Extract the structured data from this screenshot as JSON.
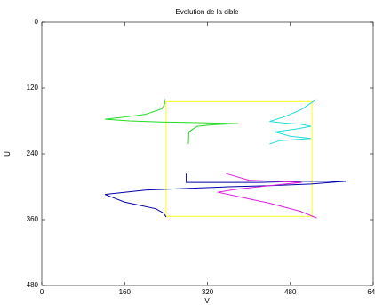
{
  "chart_data": {
    "type": "line",
    "title": "Evolution de la cible",
    "xlabel": "V",
    "ylabel": "U",
    "xlim": [
      0,
      640
    ],
    "xticks": [
      0,
      160,
      320,
      480,
      640
    ],
    "ylim": [
      0,
      480
    ],
    "yticks": [
      0,
      120,
      240,
      360,
      480
    ],
    "y_reversed": true,
    "series": [
      {
        "color": "#ffff22",
        "x": [
          240,
          522,
          522,
          240,
          240
        ],
        "y": [
          145,
          145,
          354,
          354,
          145
        ]
      },
      {
        "color": "#22dd22",
        "x": [
          238,
          238,
          232,
          200,
          160,
          122,
          170,
          230,
          290,
          340,
          380,
          330,
          300,
          284,
          283
        ],
        "y": [
          140,
          148,
          158,
          168,
          173,
          177,
          180,
          182,
          183,
          184,
          185,
          187,
          190,
          200,
          222
        ]
      },
      {
        "color": "#22dddd",
        "x": [
          530,
          500,
          470,
          440,
          470,
          500,
          520,
          490,
          450,
          480,
          520,
          490,
          460,
          440
        ],
        "y": [
          141,
          160,
          172,
          181,
          184,
          186,
          190,
          195,
          200,
          208,
          212,
          214,
          216,
          222
        ]
      },
      {
        "color": "#0000aa",
        "x": [
          279,
          279,
          330,
          420,
          500,
          587,
          520,
          440,
          360,
          280,
          200,
          122,
          160,
          220,
          235,
          240
        ],
        "y": [
          276,
          292,
          292,
          292,
          290,
          290,
          295,
          298,
          300,
          303,
          306,
          314,
          328,
          340,
          348,
          355
        ]
      },
      {
        "color": "#dd22dd",
        "x": [
          356,
          400,
          450,
          502,
          460,
          420,
          380,
          340,
          380,
          440,
          500,
          531
        ],
        "y": [
          276,
          288,
          290,
          292,
          296,
          300,
          304,
          310,
          318,
          330,
          345,
          357
        ]
      }
    ]
  }
}
